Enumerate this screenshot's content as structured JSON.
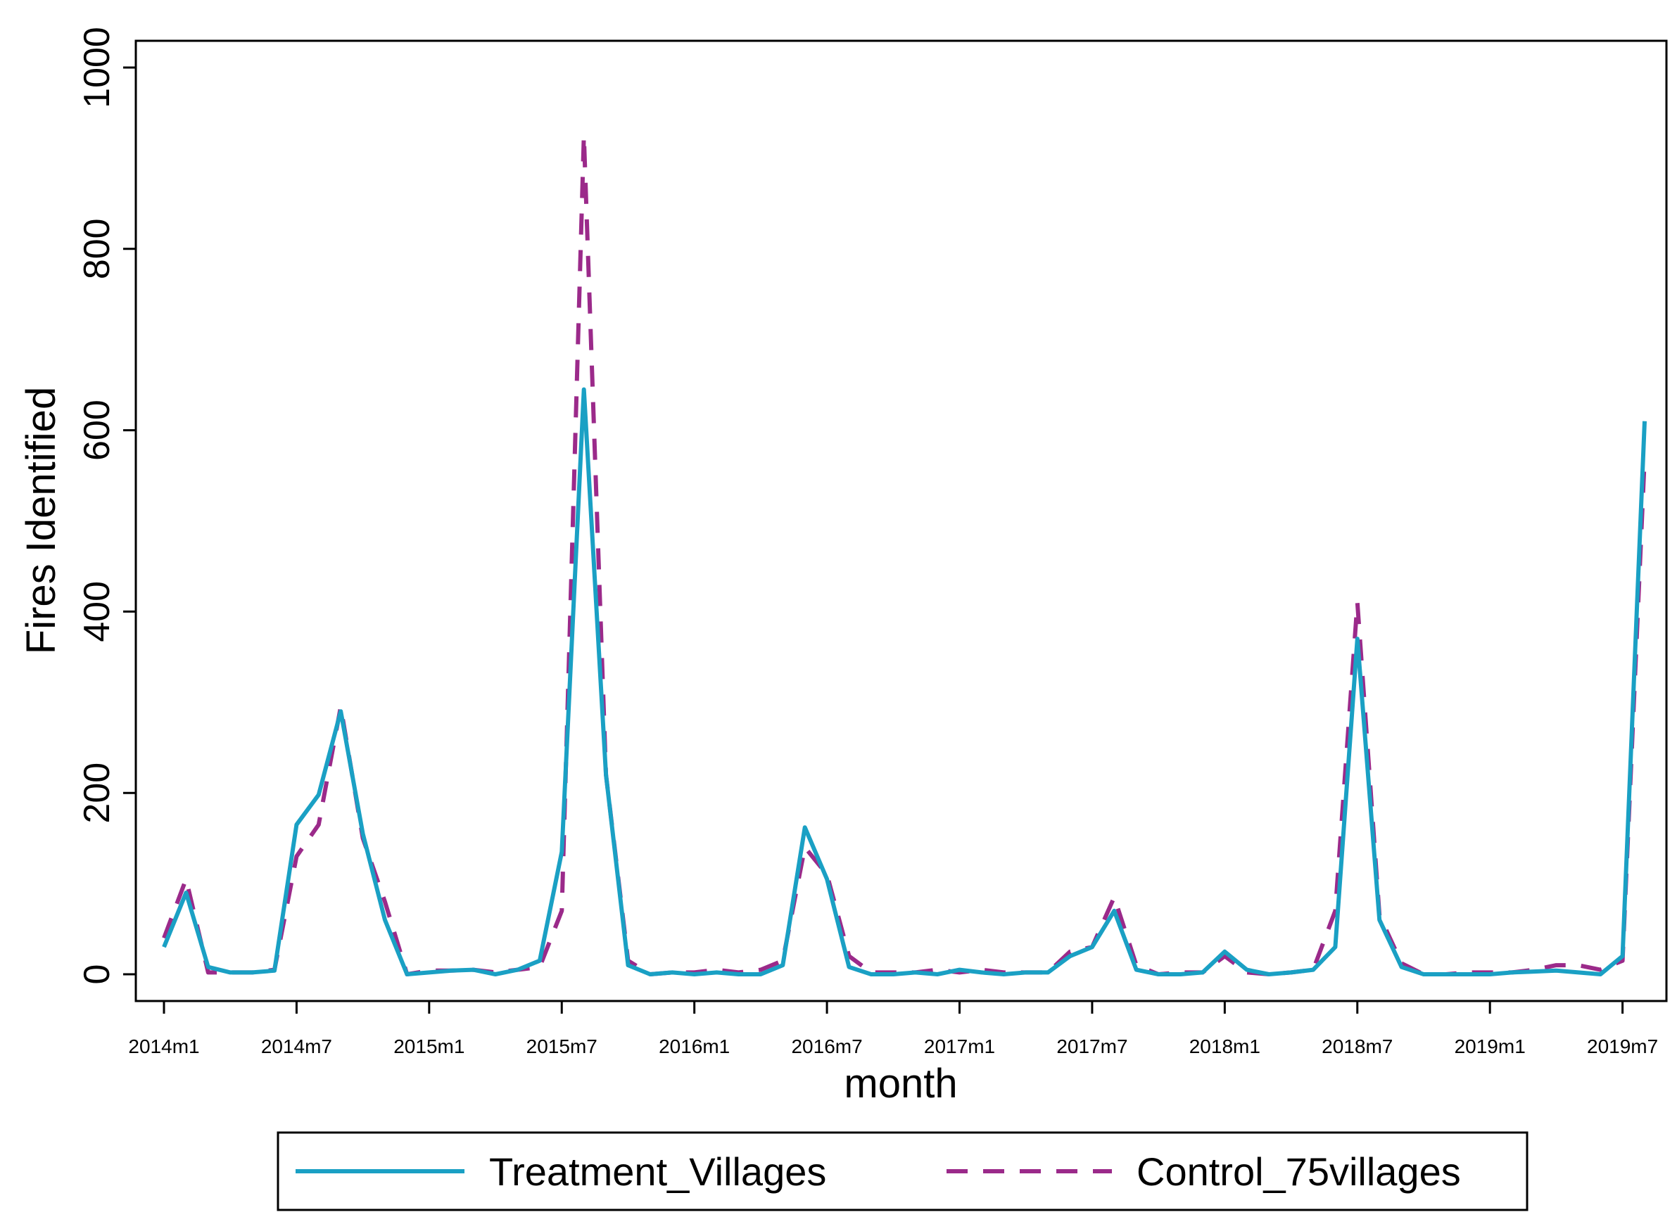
{
  "chart_data": {
    "type": "line",
    "title": "",
    "xlabel": "month",
    "ylabel": "Fires Identified",
    "ylim": [
      0,
      1000
    ],
    "xlim": [
      0,
      67
    ],
    "grid": false,
    "legend_position": "bottom",
    "y_ticks": [
      {
        "value": 0,
        "label": "0"
      },
      {
        "value": 200,
        "label": "200"
      },
      {
        "value": 400,
        "label": "400"
      },
      {
        "value": 600,
        "label": "600"
      },
      {
        "value": 800,
        "label": "800"
      },
      {
        "value": 1000,
        "label": "1000"
      }
    ],
    "x_ticks": [
      {
        "value": 0,
        "label": "2014m1"
      },
      {
        "value": 6,
        "label": "2014m7"
      },
      {
        "value": 12,
        "label": "2015m1"
      },
      {
        "value": 18,
        "label": "2015m7"
      },
      {
        "value": 24,
        "label": "2016m1"
      },
      {
        "value": 30,
        "label": "2016m7"
      },
      {
        "value": 36,
        "label": "2017m1"
      },
      {
        "value": 42,
        "label": "2017m7"
      },
      {
        "value": 48,
        "label": "2018m1"
      },
      {
        "value": 54,
        "label": "2018m7"
      },
      {
        "value": 60,
        "label": "2019m1"
      },
      {
        "value": 66,
        "label": "2019m7"
      }
    ],
    "x": [
      0,
      1,
      2,
      3,
      4,
      5,
      6,
      7,
      8,
      9,
      10,
      11,
      12,
      13,
      14,
      15,
      16,
      17,
      18,
      19,
      20,
      21,
      22,
      23,
      24,
      25,
      26,
      27,
      28,
      29,
      30,
      31,
      32,
      33,
      34,
      35,
      36,
      37,
      38,
      39,
      40,
      41,
      42,
      43,
      44,
      45,
      46,
      47,
      48,
      49,
      50,
      51,
      52,
      53,
      54,
      55,
      56,
      57,
      58,
      59,
      60,
      61,
      62,
      63,
      64,
      65,
      66,
      67
    ],
    "series": [
      {
        "name": "Treatment_Villages",
        "color": "#1aa0c4",
        "style": "solid",
        "values": [
          30,
          90,
          8,
          2,
          2,
          4,
          165,
          198,
          290,
          155,
          60,
          0,
          2,
          4,
          5,
          0,
          5,
          15,
          135,
          645,
          220,
          10,
          0,
          2,
          0,
          2,
          0,
          0,
          10,
          162,
          105,
          8,
          0,
          0,
          2,
          0,
          5,
          2,
          0,
          2,
          2,
          20,
          30,
          70,
          5,
          0,
          0,
          2,
          25,
          5,
          0,
          2,
          5,
          30,
          370,
          60,
          8,
          0,
          0,
          0,
          0,
          2,
          3,
          4,
          2,
          0,
          20,
          610
        ]
      },
      {
        "name": "Control_75villages",
        "color": "#9b2a8a",
        "style": "dashed",
        "values": [
          40,
          105,
          2,
          2,
          2,
          5,
          130,
          165,
          295,
          150,
          80,
          0,
          4,
          4,
          5,
          2,
          5,
          8,
          70,
          925,
          220,
          15,
          0,
          2,
          2,
          5,
          2,
          5,
          15,
          140,
          110,
          20,
          2,
          2,
          2,
          5,
          2,
          5,
          2,
          2,
          2,
          25,
          30,
          85,
          10,
          0,
          2,
          2,
          20,
          2,
          0,
          2,
          5,
          70,
          410,
          65,
          12,
          0,
          0,
          2,
          2,
          2,
          5,
          10,
          10,
          5,
          15,
          570
        ]
      }
    ]
  },
  "legend": {
    "items": [
      {
        "label": "Treatment_Villages"
      },
      {
        "label": "Control_75villages"
      }
    ]
  }
}
